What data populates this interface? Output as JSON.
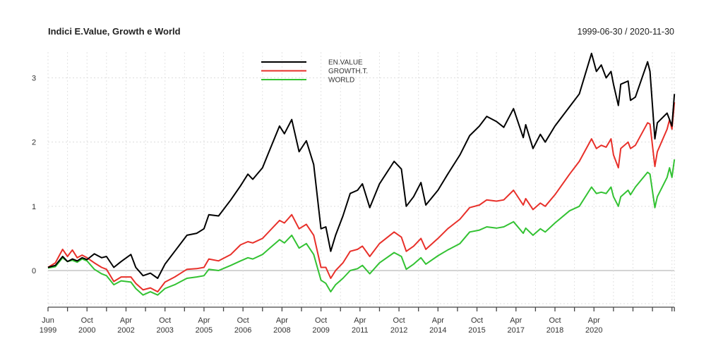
{
  "chart_data": {
    "type": "line",
    "title": "Indici E.Value, Growth e World",
    "date_range": "1999-06-30 / 2020-11-30",
    "ylim": [
      -0.5,
      3.4
    ],
    "yticks": [
      0,
      1,
      2,
      3
    ],
    "grid": true,
    "legend_placement": "top-center",
    "xtick_labels": [
      [
        "Jun",
        "1999"
      ],
      [
        "Oct",
        "2000"
      ],
      [
        "Apr",
        "2002"
      ],
      [
        "Oct",
        "2003"
      ],
      [
        "Apr",
        "2005"
      ],
      [
        "Oct",
        "2006"
      ],
      [
        "Apr",
        "2008"
      ],
      [
        "Oct",
        "2009"
      ],
      [
        "Apr",
        "2011"
      ],
      [
        "Oct",
        "2012"
      ],
      [
        "Apr",
        "2014"
      ],
      [
        "Oct",
        "2015"
      ],
      [
        "Apr",
        "2017"
      ],
      [
        "Oct",
        "2018"
      ],
      [
        "Apr",
        "2020"
      ]
    ],
    "x": [
      "1999-06",
      "1999-09",
      "1999-12",
      "2000-02",
      "2000-04",
      "2000-06",
      "2000-08",
      "2000-10",
      "2001-01",
      "2001-04",
      "2001-06",
      "2001-09",
      "2001-12",
      "2002-04",
      "2002-06",
      "2002-09",
      "2002-12",
      "2003-03",
      "2003-06",
      "2003-10",
      "2004-03",
      "2004-07",
      "2004-10",
      "2004-12",
      "2005-04",
      "2005-09",
      "2006-01",
      "2006-04",
      "2006-06",
      "2006-10",
      "2007-01",
      "2007-05",
      "2007-07",
      "2007-10",
      "2008-01",
      "2008-04",
      "2008-07",
      "2008-10",
      "2008-12",
      "2009-02",
      "2009-04",
      "2009-07",
      "2009-10",
      "2010-01",
      "2010-03",
      "2010-06",
      "2010-10",
      "2011-04",
      "2011-07",
      "2011-09",
      "2011-12",
      "2012-03",
      "2012-05",
      "2012-10",
      "2013-02",
      "2013-07",
      "2013-11",
      "2014-03",
      "2014-06",
      "2014-10",
      "2015-01",
      "2015-05",
      "2015-09",
      "2015-10",
      "2016-01",
      "2016-04",
      "2016-06",
      "2016-10",
      "2017-04",
      "2017-08",
      "2018-01",
      "2018-03",
      "2018-05",
      "2018-07",
      "2018-09",
      "2018-10",
      "2018-12",
      "2019-01",
      "2019-04",
      "2019-05",
      "2019-07",
      "2019-12",
      "2020-01",
      "2020-03",
      "2020-04",
      "2020-08",
      "2020-09",
      "2020-10",
      "2020-11"
    ],
    "series": [
      {
        "name": "EN.VALUE",
        "color": "#000000",
        "values": [
          0.05,
          0.08,
          0.22,
          0.14,
          0.18,
          0.15,
          0.2,
          0.17,
          0.26,
          0.2,
          0.22,
          0.05,
          0.14,
          0.25,
          0.05,
          -0.08,
          -0.04,
          -0.12,
          0.1,
          0.3,
          0.55,
          0.58,
          0.65,
          0.87,
          0.85,
          1.1,
          1.32,
          1.5,
          1.42,
          1.6,
          1.88,
          2.25,
          2.13,
          2.35,
          1.85,
          2.02,
          1.65,
          0.65,
          0.68,
          0.3,
          0.55,
          0.85,
          1.2,
          1.25,
          1.35,
          0.98,
          1.35,
          1.7,
          1.58,
          1.0,
          1.15,
          1.37,
          1.02,
          1.25,
          1.5,
          1.8,
          2.1,
          2.25,
          2.4,
          2.32,
          2.23,
          2.52,
          2.07,
          2.27,
          1.9,
          2.12,
          2.0,
          2.25,
          2.55,
          2.75,
          3.38,
          3.1,
          3.2,
          3.0,
          3.1,
          2.9,
          2.57,
          2.9,
          2.95,
          2.65,
          2.7,
          3.25,
          3.1,
          2.05,
          2.3,
          2.45,
          2.35,
          2.25,
          2.75
        ]
      },
      {
        "name": "GROWTH.T.",
        "color": "#e8302a",
        "values": [
          0.05,
          0.12,
          0.33,
          0.22,
          0.32,
          0.2,
          0.24,
          0.2,
          0.12,
          0.05,
          0.02,
          -0.17,
          -0.1,
          -0.1,
          -0.2,
          -0.3,
          -0.27,
          -0.33,
          -0.18,
          -0.1,
          0.02,
          0.03,
          0.05,
          0.18,
          0.15,
          0.25,
          0.4,
          0.45,
          0.43,
          0.5,
          0.62,
          0.78,
          0.74,
          0.87,
          0.65,
          0.72,
          0.55,
          0.05,
          0.05,
          -0.12,
          0.0,
          0.12,
          0.3,
          0.33,
          0.38,
          0.22,
          0.42,
          0.6,
          0.52,
          0.3,
          0.38,
          0.5,
          0.33,
          0.5,
          0.65,
          0.8,
          0.98,
          1.02,
          1.1,
          1.08,
          1.1,
          1.25,
          1.02,
          1.12,
          0.95,
          1.05,
          1.0,
          1.18,
          1.5,
          1.7,
          2.05,
          1.9,
          1.95,
          1.92,
          2.05,
          1.8,
          1.6,
          1.9,
          2.0,
          1.9,
          1.95,
          2.3,
          2.28,
          1.62,
          1.85,
          2.2,
          2.35,
          2.2,
          2.62
        ]
      },
      {
        "name": "WORLD",
        "color": "#33c233",
        "values": [
          0.04,
          0.06,
          0.2,
          0.14,
          0.16,
          0.13,
          0.18,
          0.15,
          0.02,
          -0.05,
          -0.08,
          -0.22,
          -0.16,
          -0.18,
          -0.28,
          -0.38,
          -0.33,
          -0.38,
          -0.28,
          -0.22,
          -0.12,
          -0.1,
          -0.08,
          0.02,
          0.0,
          0.08,
          0.15,
          0.2,
          0.18,
          0.25,
          0.35,
          0.48,
          0.43,
          0.55,
          0.35,
          0.42,
          0.25,
          -0.15,
          -0.2,
          -0.33,
          -0.22,
          -0.12,
          0.0,
          0.03,
          0.08,
          -0.05,
          0.12,
          0.28,
          0.22,
          0.02,
          0.1,
          0.2,
          0.1,
          0.23,
          0.32,
          0.42,
          0.6,
          0.63,
          0.68,
          0.66,
          0.68,
          0.76,
          0.58,
          0.66,
          0.55,
          0.65,
          0.6,
          0.74,
          0.93,
          1.0,
          1.3,
          1.2,
          1.22,
          1.2,
          1.3,
          1.15,
          1.0,
          1.15,
          1.25,
          1.18,
          1.3,
          1.53,
          1.5,
          0.98,
          1.15,
          1.45,
          1.6,
          1.45,
          1.73
        ]
      }
    ]
  }
}
